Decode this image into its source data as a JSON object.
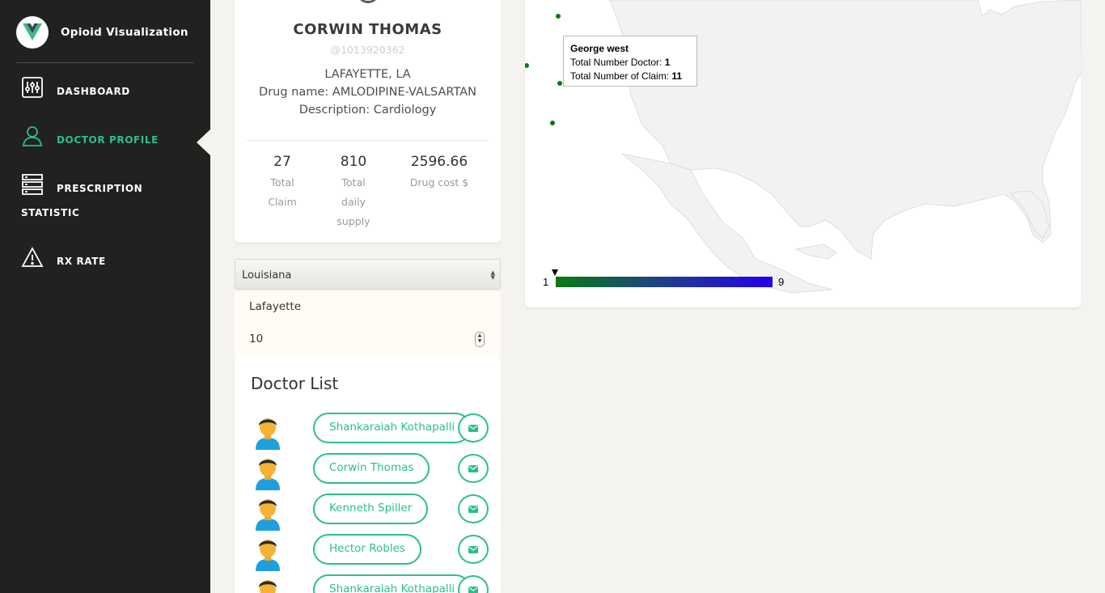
{
  "app": {
    "title": "Opioid Visualization"
  },
  "sidebar": {
    "items": [
      {
        "label": "DASHBOARD"
      },
      {
        "label": "DOCTOR PROFILE"
      },
      {
        "label": "PRESCRIPTION",
        "label2": "STATISTIC"
      },
      {
        "label": "RX RATE"
      }
    ],
    "active_color": "#2bbf8d"
  },
  "profile": {
    "name": "CORWIN THOMAS",
    "id": "@1013920362",
    "location": "LAFAYETTE, LA",
    "drug": "Drug name: AMLODIPINE-VALSARTAN",
    "description": "Description: Cardiology",
    "stats": [
      {
        "value": "27",
        "label": "Total Claim"
      },
      {
        "value": "810",
        "label": "Total daily supply"
      },
      {
        "value": "2596.66",
        "label": "Drug cost $"
      }
    ]
  },
  "filters": {
    "state": "Louisiana",
    "city": "Lafayette",
    "count": "10"
  },
  "doctors": {
    "title": "Doctor List",
    "items": [
      {
        "name": "Shankaraiah Kothapalli"
      },
      {
        "name": "Corwin Thomas"
      },
      {
        "name": "Kenneth Spiller"
      },
      {
        "name": "Hector Robles"
      },
      {
        "name": "Shankaraiah Kothapalli"
      }
    ]
  },
  "map": {
    "tooltip": {
      "city": "George west",
      "doctor_label": "Total Number Doctor:",
      "doctor_value": "1",
      "claim_label": "Total Number of Claim:",
      "claim_value": "11"
    },
    "legend": {
      "min": "1",
      "max": "9",
      "color_min": "#0a7a12",
      "color_max": "#2200ee"
    },
    "dot_color": "#0a7a12",
    "land_color": "#f2f2f2"
  }
}
